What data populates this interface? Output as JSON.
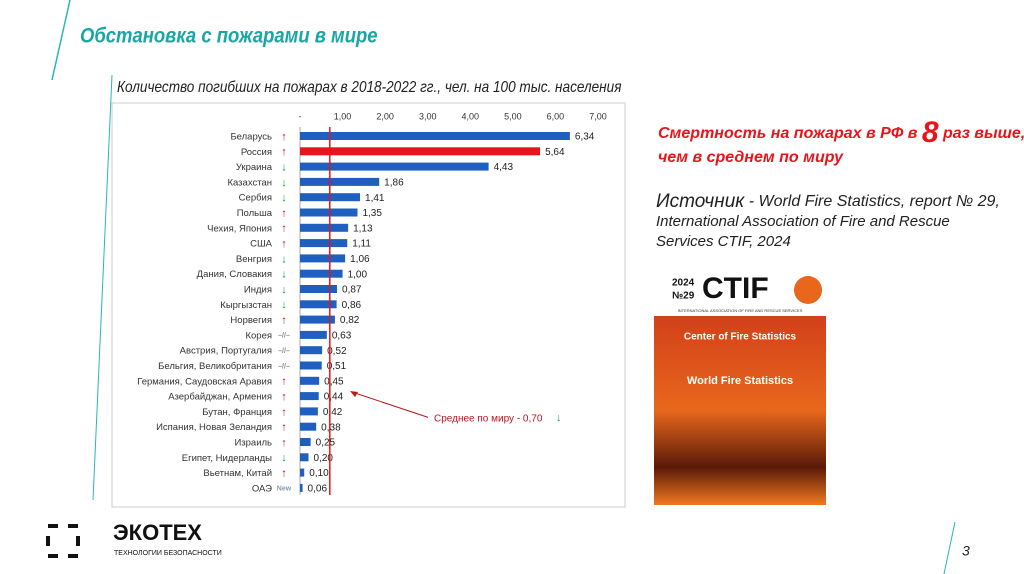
{
  "slide_title": "Обстановка с пожарами в мире",
  "rf_note": {
    "before": "Смертность на пожарах в РФ в",
    "number": "8",
    "after": "раз выше,",
    "line2": "чем в среднем по миру"
  },
  "source": {
    "lead": "Источник",
    "line1": "- World Fire Statistics, report № 29,",
    "line2": "International Association of Fire and Rescue",
    "line3": "Services CTIF, 2024"
  },
  "cover": {
    "year": "2024",
    "number": "№29",
    "brand": "CTIF",
    "org": "INTERNATIONAL ASSOCIATION OF FIRE AND RESCUE SERVICES",
    "center": "Center of Fire Statistics",
    "report": "World Fire Statistics"
  },
  "logo": {
    "name": "ЭКОТЕХ",
    "tagline": "ТЕХНОЛОГИИ БЕЗОПАСНОСТИ"
  },
  "page_number": "3",
  "chart_data": {
    "type": "hbar",
    "title": "Количество погибших на пожарах в 2018-2022 гг., чел. на 100 тыс. населения",
    "categories": [
      "Беларусь",
      "Россия",
      "Украина",
      "Казахстан",
      "Сербия",
      "Польша",
      "Чехия, Япония",
      "США",
      "Венгрия",
      "Дания, Словакия",
      "Индия",
      "Кыргызстан",
      "Норвегия",
      "Корея",
      "Австрия, Португалия",
      "Бельгия, Великобритания",
      "Германия, Саудовская Аравия",
      "Азербайджан, Армения",
      "Бутан, Франция",
      "Испания, Новая Зеландия",
      "Израиль",
      "Египет, Нидерланды",
      "Вьетнам, Китай",
      "ОАЭ"
    ],
    "values": [
      6.34,
      5.64,
      4.43,
      1.86,
      1.41,
      1.35,
      1.13,
      1.11,
      1.06,
      1.0,
      0.87,
      0.86,
      0.82,
      0.63,
      0.52,
      0.51,
      0.45,
      0.44,
      0.42,
      0.38,
      0.25,
      0.2,
      0.1,
      0.06
    ],
    "value_labels": [
      "6,34",
      "5,64",
      "4,43",
      "1,86",
      "1,41",
      "1,35",
      "1,13",
      "1,11",
      "1,06",
      "1,00",
      "0,87",
      "0,86",
      "0,82",
      "0,63",
      "0,52",
      "0,51",
      "0,45",
      "0,44",
      "0,42",
      "0,38",
      "0,25",
      "0,20",
      "0,10",
      "0,06"
    ],
    "colors": [
      "#1f5fbf",
      "#e8141b",
      "#1f5fbf",
      "#1f5fbf",
      "#1f5fbf",
      "#1f5fbf",
      "#1f5fbf",
      "#1f5fbf",
      "#1f5fbf",
      "#1f5fbf",
      "#1f5fbf",
      "#1f5fbf",
      "#1f5fbf",
      "#1f5fbf",
      "#1f5fbf",
      "#1f5fbf",
      "#1f5fbf",
      "#1f5fbf",
      "#1f5fbf",
      "#1f5fbf",
      "#1f5fbf",
      "#1f5fbf",
      "#1f5fbf",
      "#1f5fbf"
    ],
    "trends": [
      "↑",
      "↑",
      "↓",
      "↓",
      "↓",
      "↑",
      "↑",
      "↑",
      "↓",
      "↓",
      "↓",
      "↓",
      "↑",
      "–//–",
      "–//–",
      "–//–",
      "↑",
      "↑",
      "↑",
      "↑",
      "↑",
      "↓",
      "↑",
      "New"
    ],
    "trend_colors": [
      "#c0141b",
      "#c0141b",
      "#1a9a3a",
      "#1a9a3a",
      "#1a9a3a",
      "#c0141b",
      "#c0141b",
      "#c0141b",
      "#1a9a3a",
      "#1a9a3a",
      "#1a9a3a",
      "#1a9a3a",
      "#c0141b",
      "#888888",
      "#888888",
      "#888888",
      "#c0141b",
      "#c0141b",
      "#c0141b",
      "#c0141b",
      "#c0141b",
      "#1a9a3a",
      "#c0141b",
      "#8899aa"
    ],
    "xlim": [
      0,
      7
    ],
    "xticks": [
      {
        "value": 0,
        "label": "-"
      },
      {
        "value": 1,
        "label": "1,00"
      },
      {
        "value": 2,
        "label": "2,00"
      },
      {
        "value": 3,
        "label": "3,00"
      },
      {
        "value": 4,
        "label": "4,00"
      },
      {
        "value": 5,
        "label": "5,00"
      },
      {
        "value": 6,
        "label": "6,00"
      },
      {
        "value": 7,
        "label": "7,00"
      }
    ],
    "average": {
      "value": 0.7,
      "label": "Среднее по миру - 0,70",
      "trend": "↓",
      "color": "#e8141b"
    }
  }
}
